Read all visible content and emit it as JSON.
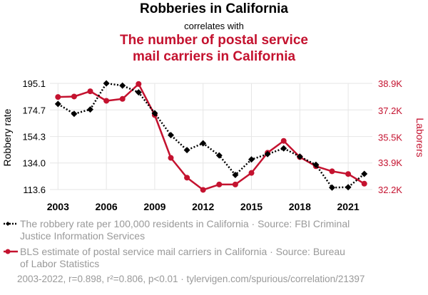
{
  "header": {
    "title": "Robberies in California",
    "connector": "correlates with",
    "title2_line1": "The number of postal service",
    "title2_line2": "mail carriers in California"
  },
  "colors": {
    "series1": "#000000",
    "series2": "#c4122f",
    "grid": "#e6e6e6",
    "legend_text": "#999999"
  },
  "legend": {
    "item1_line1": "The robbery rate per 100,000 residents in California · Source: FBI Criminal",
    "item1_line2": "Justice Information Services",
    "item2_line1": "BLS estimate of postal service mail carriers in California · Source: Bureau",
    "item2_line2": "of Labor Statistics"
  },
  "footer": "2003-2022, r=0.898, r²=0.806, p<0.01 · tylervigen.com/spurious/correlation/21397",
  "chart_data": {
    "type": "line",
    "x": [
      2003,
      2004,
      2005,
      2006,
      2007,
      2008,
      2009,
      2010,
      2011,
      2012,
      2013,
      2014,
      2015,
      2016,
      2017,
      2018,
      2019,
      2020,
      2021,
      2022
    ],
    "xlim": [
      2002.5,
      2022.5
    ],
    "x_ticks": [
      2003,
      2006,
      2009,
      2012,
      2015,
      2018,
      2021
    ],
    "series": [
      {
        "name": "Robbery rate",
        "axis": "left",
        "style": "dotted",
        "marker": "diamond",
        "values": [
          179.3,
          171.7,
          175.1,
          195.1,
          193.4,
          188.2,
          172.2,
          155.4,
          143.9,
          149.1,
          139.8,
          124.8,
          136.7,
          140.8,
          145.2,
          138.9,
          132.6,
          115.1,
          115.4,
          125.6
        ]
      },
      {
        "name": "Postal mail carriers",
        "axis": "right",
        "style": "solid",
        "marker": "circle",
        "values": [
          38040,
          38070,
          38400,
          37800,
          37920,
          38860,
          36900,
          34200,
          32950,
          32180,
          32520,
          32520,
          33250,
          34520,
          35270,
          34250,
          33670,
          33350,
          33180,
          32570
        ]
      }
    ],
    "left_axis": {
      "label": "Robbery rate",
      "ticks": [
        113.6,
        134.0,
        154.3,
        174.7,
        195.1
      ],
      "tick_labels": [
        "113.6",
        "134.0",
        "154.3",
        "174.7",
        "195.1"
      ],
      "ylim": [
        113.6,
        195.1
      ]
    },
    "right_axis": {
      "label": "Laborers",
      "ticks": [
        32200,
        33900,
        35500,
        37200,
        38900
      ],
      "tick_labels": [
        "32.2K",
        "33.9K",
        "35.5K",
        "37.2K",
        "38.9K"
      ],
      "ylim": [
        32200,
        38900
      ]
    }
  }
}
